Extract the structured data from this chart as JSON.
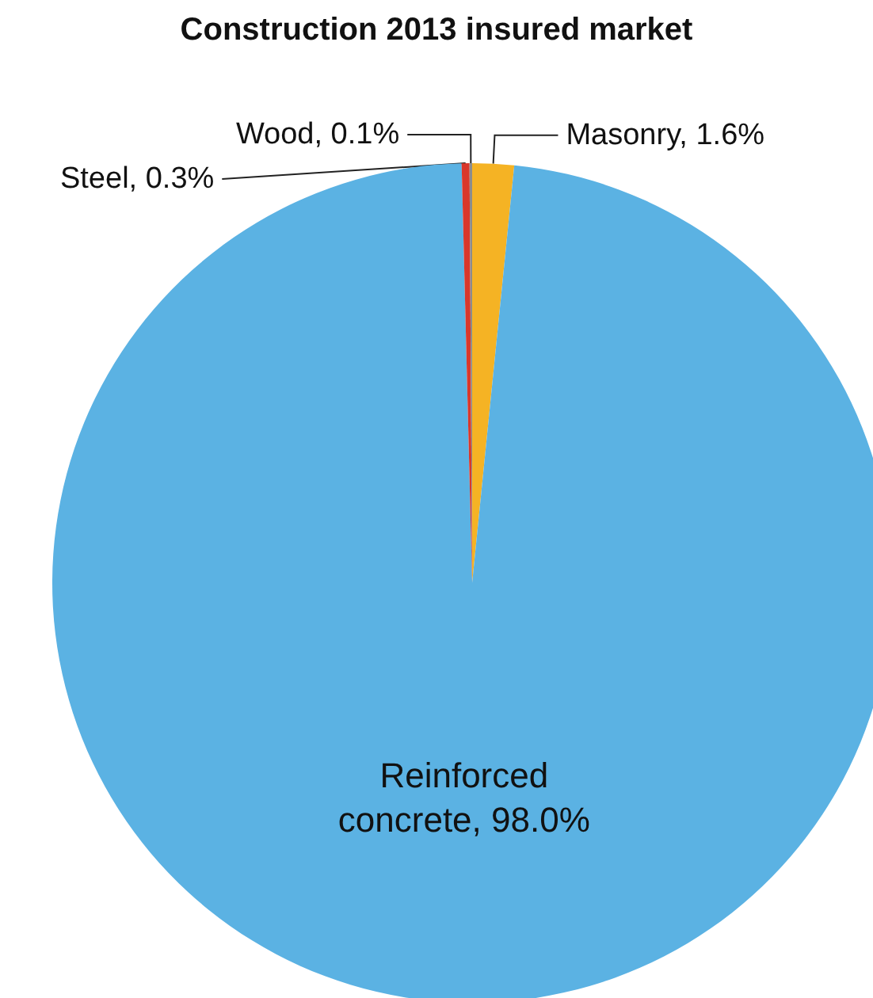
{
  "chart_data": {
    "type": "pie",
    "title": "Construction 2013 insured market",
    "categories": [
      "Masonry",
      "Reinforced concrete",
      "Steel",
      "Wood"
    ],
    "values": [
      1.6,
      98.0,
      0.3,
      0.1
    ],
    "colors": [
      "#f5b324",
      "#5bb2e3",
      "#d9372b",
      "#8c8c8c"
    ],
    "value_labels": [
      "1.6%",
      "98.0%",
      "0.3%",
      "0.1%"
    ],
    "legend": false
  }
}
